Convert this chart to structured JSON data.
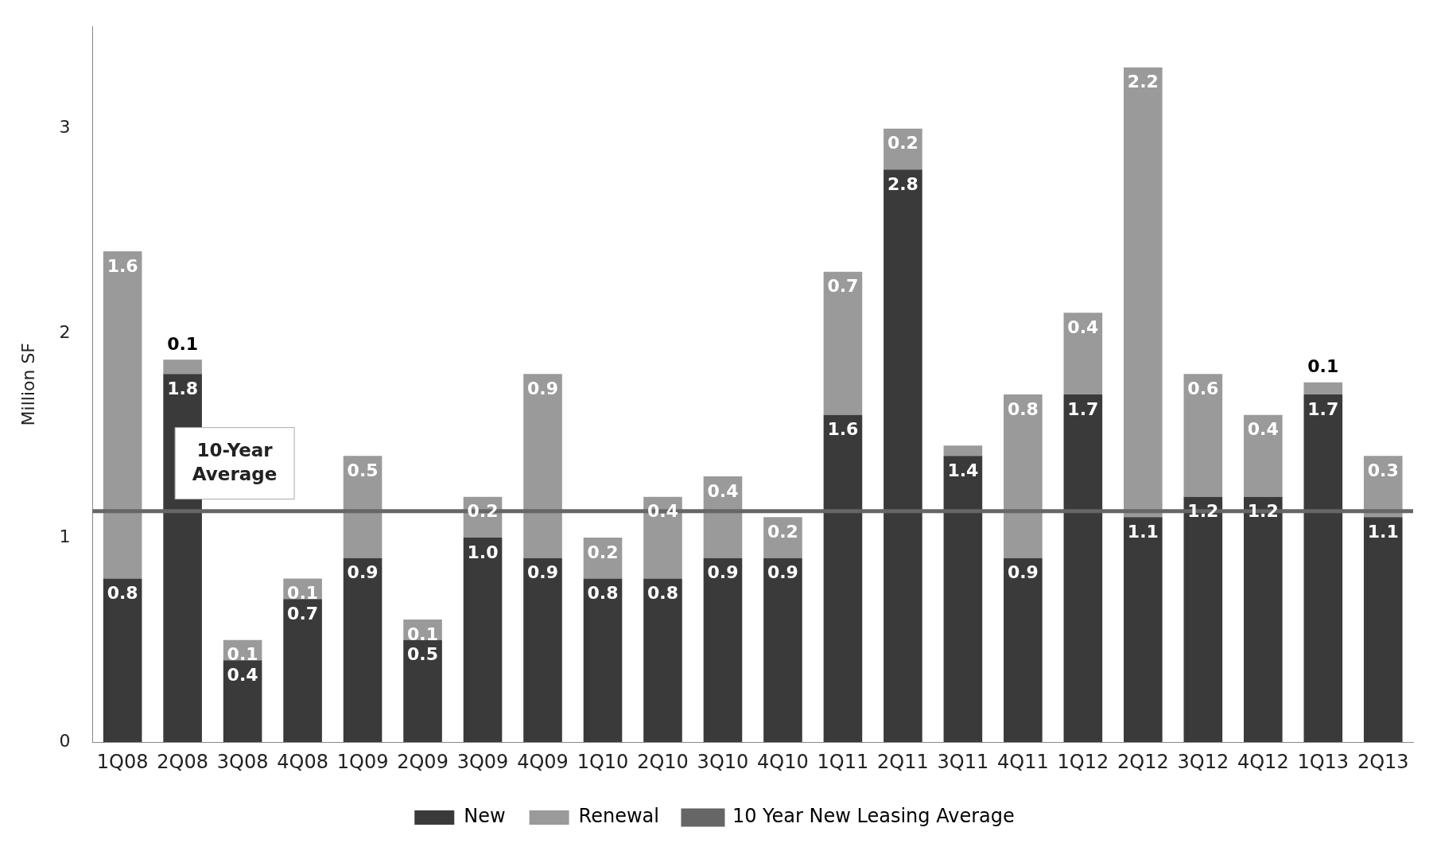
{
  "chart_data": {
    "type": "bar",
    "stacked": true,
    "ylabel": "Million SF",
    "categories": [
      "1Q08",
      "2Q08",
      "3Q08",
      "4Q08",
      "1Q09",
      "2Q09",
      "3Q09",
      "4Q09",
      "1Q10",
      "2Q10",
      "3Q10",
      "4Q10",
      "1Q11",
      "2Q11",
      "3Q11",
      "4Q11",
      "1Q12",
      "2Q12",
      "3Q12",
      "4Q12",
      "1Q13",
      "2Q13"
    ],
    "series": [
      {
        "name": "New",
        "color": "#3a3a3a",
        "values": [
          0.8,
          1.8,
          0.4,
          0.7,
          0.9,
          0.5,
          1.0,
          0.9,
          0.8,
          0.8,
          0.9,
          0.9,
          1.6,
          2.8,
          1.4,
          0.9,
          1.7,
          1.1,
          1.2,
          1.2,
          1.7,
          1.1
        ],
        "value_labels": [
          "0.8",
          "1.8",
          "0.4",
          "0.7",
          "0.9",
          "0.5",
          "1.0",
          "0.9",
          "0.8",
          "0.8",
          "0.9",
          "0.9",
          "1.6",
          "2.8",
          "1.4",
          "0.9",
          "1.7",
          "1.1",
          "1.2",
          "1.2",
          "1.7",
          "1.1"
        ]
      },
      {
        "name": "Renewal",
        "color": "#9a9a9a",
        "values": [
          1.6,
          0.07,
          0.1,
          0.1,
          0.5,
          0.1,
          0.2,
          0.9,
          0.2,
          0.4,
          0.4,
          0.2,
          0.7,
          0.2,
          0.05,
          0.8,
          0.4,
          2.2,
          0.6,
          0.4,
          0.06,
          0.3
        ],
        "value_labels": [
          "1.6",
          "0.1",
          "0.1",
          "0.1",
          "0.5",
          "0.1",
          "0.2",
          "0.9",
          "0.2",
          "0.4",
          "0.4",
          "0.2",
          "0.7",
          "0.2",
          null,
          "0.8",
          "0.4",
          "2.2",
          "0.6",
          "0.4",
          "0.1",
          "0.3"
        ]
      }
    ],
    "ylim": [
      0,
      3.5
    ],
    "yticks": [
      0,
      1,
      2,
      3
    ],
    "ref_lines": [
      {
        "axis": "y",
        "value": 1.13,
        "label": "10 Year New Leasing Average",
        "color": "#666666"
      }
    ],
    "annotations": [
      {
        "text": "10-Year Average",
        "x": "3Q08",
        "y": 1.13
      }
    ],
    "legend": "bottom"
  }
}
